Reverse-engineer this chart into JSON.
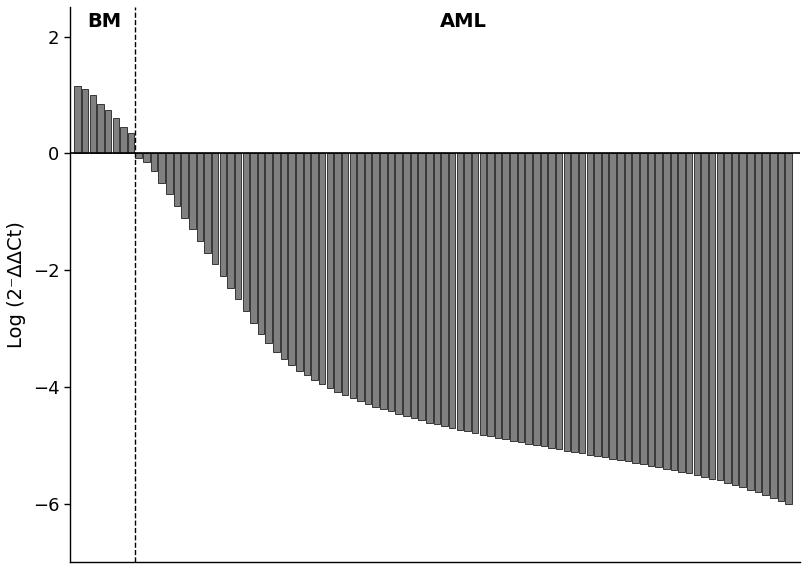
{
  "bm_values": [
    1.15,
    1.1,
    1.0,
    0.85,
    0.75,
    0.6,
    0.45,
    0.35
  ],
  "aml_values": [
    -0.08,
    -0.15,
    -0.3,
    -0.5,
    -0.7,
    -0.9,
    -1.1,
    -1.3,
    -1.5,
    -1.7,
    -1.9,
    -2.1,
    -2.3,
    -2.5,
    -2.7,
    -2.9,
    -3.1,
    -3.25,
    -3.4,
    -3.52,
    -3.62,
    -3.72,
    -3.8,
    -3.88,
    -3.95,
    -4.02,
    -4.08,
    -4.14,
    -4.19,
    -4.24,
    -4.29,
    -4.34,
    -4.38,
    -4.42,
    -4.46,
    -4.5,
    -4.54,
    -4.57,
    -4.61,
    -4.64,
    -4.67,
    -4.7,
    -4.73,
    -4.76,
    -4.79,
    -4.82,
    -4.84,
    -4.87,
    -4.89,
    -4.92,
    -4.94,
    -4.97,
    -4.99,
    -5.02,
    -5.04,
    -5.06,
    -5.09,
    -5.11,
    -5.13,
    -5.16,
    -5.18,
    -5.2,
    -5.23,
    -5.25,
    -5.27,
    -5.3,
    -5.32,
    -5.35,
    -5.37,
    -5.4,
    -5.42,
    -5.45,
    -5.48,
    -5.51,
    -5.54,
    -5.57,
    -5.6,
    -5.64,
    -5.68,
    -5.72,
    -5.76,
    -5.8,
    -5.85,
    -5.9,
    -5.95,
    -6.0
  ],
  "bar_color": "#808080",
  "bar_edge_color": "#000000",
  "bar_linewidth": 0.5,
  "bm_label": "BM",
  "aml_label": "AML",
  "ylabel": "Log (2⁻ΔΔCt)",
  "ylim": [
    -7,
    2.5
  ],
  "yticks": [
    -6,
    -4,
    -2,
    0,
    2
  ],
  "label_fontsize": 14,
  "tick_fontsize": 13,
  "background_color": "#ffffff"
}
